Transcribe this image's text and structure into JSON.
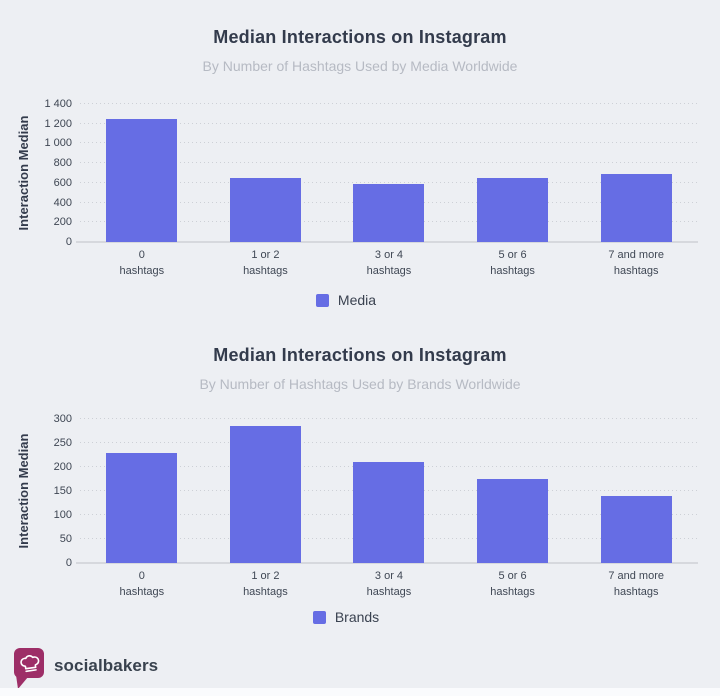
{
  "page": {
    "background_color": "#edeff3",
    "bottom_strip_color": "#fafbfd"
  },
  "chart_data": [
    {
      "type": "bar",
      "title": "Median Interactions on Instagram",
      "subtitle": "By Number of Hashtags Used by Media Worldwide",
      "xlabel": "",
      "ylabel": "Interaction Median",
      "legend": "Media",
      "legend_position": "bottom-center",
      "grid": "dotted-horizontal",
      "bar_color": "#666de4",
      "ylim": [
        0,
        1400
      ],
      "ytick_labels": [
        "0",
        "200",
        "400",
        "600",
        "800",
        "1 000",
        "1 200",
        "1 400"
      ],
      "categories": [
        [
          "0",
          "hashtags"
        ],
        [
          "1 or 2",
          "hashtags"
        ],
        [
          "3 or 4",
          "hashtags"
        ],
        [
          "5 or 6",
          "hashtags"
        ],
        [
          "7 and more",
          "hashtags"
        ]
      ],
      "values": [
        1250,
        650,
        590,
        650,
        690
      ]
    },
    {
      "type": "bar",
      "title": "Median Interactions on Instagram",
      "subtitle": "By Number of Hashtags Used by Brands Worldwide",
      "xlabel": "",
      "ylabel": "Interaction Median",
      "legend": "Brands",
      "legend_position": "bottom-center",
      "grid": "dotted-horizontal",
      "bar_color": "#666de4",
      "ylim": [
        0,
        300
      ],
      "ytick_labels": [
        "0",
        "50",
        "100",
        "150",
        "200",
        "250",
        "300"
      ],
      "categories": [
        [
          "0",
          "hashtags"
        ],
        [
          "1 or 2",
          "hashtags"
        ],
        [
          "3 or 4",
          "hashtags"
        ],
        [
          "5 or 6",
          "hashtags"
        ],
        [
          "7 and more",
          "hashtags"
        ]
      ],
      "values": [
        230,
        285,
        210,
        175,
        140
      ]
    }
  ],
  "footer": {
    "brand": "socialbakers",
    "logo_color": "#9d2e67"
  }
}
